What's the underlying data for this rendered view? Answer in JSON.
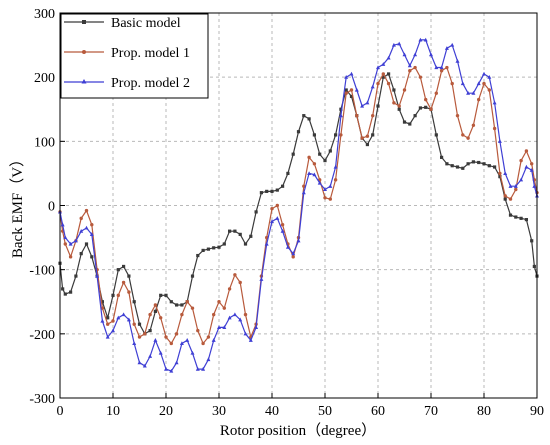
{
  "chart_data": {
    "type": "line",
    "title": "",
    "xlabel": "Rotor position（degree）",
    "ylabel": "Back EMF（V）",
    "xlim": [
      0,
      90
    ],
    "ylim": [
      -300,
      300
    ],
    "xticks": [
      0,
      10,
      20,
      30,
      40,
      50,
      60,
      70,
      80,
      90
    ],
    "yticks": [
      -300,
      -200,
      -100,
      0,
      100,
      200,
      300
    ],
    "grid": true,
    "legend_position": "top-left",
    "colors": {
      "basic": "#3a3a3a",
      "prop1": "#b85a3c",
      "prop2": "#3f3fd4"
    },
    "series": [
      {
        "name": "Basic model",
        "color": "#3a3a3a",
        "points": [
          [
            0,
            -90
          ],
          [
            0.5,
            -130
          ],
          [
            1,
            -138
          ],
          [
            2,
            -135
          ],
          [
            3,
            -110
          ],
          [
            4,
            -75
          ],
          [
            5,
            -60
          ],
          [
            6,
            -80
          ],
          [
            7,
            -110
          ],
          [
            8,
            -150
          ],
          [
            9,
            -175
          ],
          [
            10,
            -140
          ],
          [
            11,
            -100
          ],
          [
            12,
            -95
          ],
          [
            13,
            -110
          ],
          [
            14,
            -150
          ],
          [
            15,
            -185
          ],
          [
            16,
            -200
          ],
          [
            17,
            -195
          ],
          [
            18,
            -165
          ],
          [
            19,
            -140
          ],
          [
            20,
            -140
          ],
          [
            21,
            -150
          ],
          [
            22,
            -155
          ],
          [
            23,
            -155
          ],
          [
            24,
            -150
          ],
          [
            25,
            -110
          ],
          [
            26,
            -78
          ],
          [
            27,
            -70
          ],
          [
            28,
            -68
          ],
          [
            29,
            -66
          ],
          [
            30,
            -65
          ],
          [
            31,
            -60
          ],
          [
            32,
            -40
          ],
          [
            33,
            -40
          ],
          [
            34,
            -45
          ],
          [
            35,
            -60
          ],
          [
            36,
            -48
          ],
          [
            37,
            -10
          ],
          [
            38,
            20
          ],
          [
            39,
            22
          ],
          [
            40,
            22
          ],
          [
            41,
            24
          ],
          [
            42,
            30
          ],
          [
            43,
            50
          ],
          [
            44,
            80
          ],
          [
            45,
            115
          ],
          [
            46,
            140
          ],
          [
            47,
            135
          ],
          [
            48,
            110
          ],
          [
            49,
            80
          ],
          [
            50,
            70
          ],
          [
            51,
            85
          ],
          [
            52,
            110
          ],
          [
            53,
            150
          ],
          [
            54,
            180
          ],
          [
            55,
            170
          ],
          [
            56,
            140
          ],
          [
            57,
            105
          ],
          [
            58,
            95
          ],
          [
            59,
            110
          ],
          [
            60,
            155
          ],
          [
            61,
            200
          ],
          [
            62,
            205
          ],
          [
            63,
            180
          ],
          [
            64,
            150
          ],
          [
            65,
            130
          ],
          [
            66,
            127
          ],
          [
            67,
            140
          ],
          [
            68,
            152
          ],
          [
            69,
            153
          ],
          [
            70,
            150
          ],
          [
            71,
            110
          ],
          [
            72,
            75
          ],
          [
            73,
            65
          ],
          [
            74,
            62
          ],
          [
            75,
            60
          ],
          [
            76,
            58
          ],
          [
            77,
            65
          ],
          [
            78,
            68
          ],
          [
            79,
            67
          ],
          [
            80,
            65
          ],
          [
            81,
            62
          ],
          [
            82,
            60
          ],
          [
            83,
            45
          ],
          [
            84,
            10
          ],
          [
            85,
            -15
          ],
          [
            86,
            -18
          ],
          [
            87,
            -20
          ],
          [
            88,
            -22
          ],
          [
            89,
            -55
          ],
          [
            89.5,
            -95
          ],
          [
            90,
            -110
          ]
        ]
      },
      {
        "name": "Prop. model 1",
        "color": "#b85a3c",
        "points": [
          [
            0,
            -10
          ],
          [
            0.5,
            -40
          ],
          [
            1,
            -60
          ],
          [
            2,
            -80
          ],
          [
            3,
            -55
          ],
          [
            4,
            -20
          ],
          [
            5,
            -8
          ],
          [
            6,
            -30
          ],
          [
            7,
            -100
          ],
          [
            8,
            -160
          ],
          [
            9,
            -185
          ],
          [
            10,
            -180
          ],
          [
            11,
            -140
          ],
          [
            12,
            -120
          ],
          [
            13,
            -135
          ],
          [
            14,
            -185
          ],
          [
            15,
            -205
          ],
          [
            16,
            -200
          ],
          [
            17,
            -170
          ],
          [
            18,
            -155
          ],
          [
            19,
            -175
          ],
          [
            20,
            -205
          ],
          [
            21,
            -215
          ],
          [
            22,
            -200
          ],
          [
            23,
            -170
          ],
          [
            24,
            -150
          ],
          [
            25,
            -160
          ],
          [
            26,
            -195
          ],
          [
            27,
            -215
          ],
          [
            28,
            -205
          ],
          [
            29,
            -170
          ],
          [
            30,
            -150
          ],
          [
            31,
            -160
          ],
          [
            32,
            -130
          ],
          [
            33,
            -108
          ],
          [
            34,
            -120
          ],
          [
            35,
            -170
          ],
          [
            36,
            -205
          ],
          [
            37,
            -185
          ],
          [
            38,
            -110
          ],
          [
            39,
            -50
          ],
          [
            40,
            -5
          ],
          [
            41,
            0
          ],
          [
            42,
            -30
          ],
          [
            43,
            -60
          ],
          [
            44,
            -80
          ],
          [
            45,
            -50
          ],
          [
            46,
            30
          ],
          [
            47,
            75
          ],
          [
            48,
            65
          ],
          [
            49,
            40
          ],
          [
            50,
            12
          ],
          [
            51,
            10
          ],
          [
            52,
            40
          ],
          [
            53,
            110
          ],
          [
            54,
            175
          ],
          [
            55,
            180
          ],
          [
            56,
            140
          ],
          [
            57,
            105
          ],
          [
            58,
            108
          ],
          [
            59,
            140
          ],
          [
            60,
            190
          ],
          [
            61,
            205
          ],
          [
            62,
            190
          ],
          [
            63,
            160
          ],
          [
            64,
            155
          ],
          [
            65,
            180
          ],
          [
            66,
            210
          ],
          [
            67,
            215
          ],
          [
            68,
            200
          ],
          [
            69,
            165
          ],
          [
            70,
            150
          ],
          [
            71,
            175
          ],
          [
            72,
            210
          ],
          [
            73,
            215
          ],
          [
            74,
            190
          ],
          [
            75,
            140
          ],
          [
            76,
            110
          ],
          [
            77,
            105
          ],
          [
            78,
            125
          ],
          [
            79,
            165
          ],
          [
            80,
            190
          ],
          [
            81,
            180
          ],
          [
            82,
            120
          ],
          [
            83,
            50
          ],
          [
            84,
            15
          ],
          [
            85,
            10
          ],
          [
            86,
            25
          ],
          [
            87,
            70
          ],
          [
            88,
            85
          ],
          [
            89,
            65
          ],
          [
            89.5,
            40
          ],
          [
            90,
            20
          ]
        ]
      },
      {
        "name": "Prop. model 2",
        "color": "#3f3fd4",
        "points": [
          [
            0,
            -10
          ],
          [
            0.5,
            -30
          ],
          [
            1,
            -50
          ],
          [
            2,
            -60
          ],
          [
            3,
            -55
          ],
          [
            4,
            -40
          ],
          [
            5,
            -35
          ],
          [
            6,
            -45
          ],
          [
            7,
            -110
          ],
          [
            8,
            -180
          ],
          [
            9,
            -205
          ],
          [
            10,
            -195
          ],
          [
            11,
            -175
          ],
          [
            12,
            -170
          ],
          [
            13,
            -178
          ],
          [
            14,
            -215
          ],
          [
            15,
            -245
          ],
          [
            16,
            -250
          ],
          [
            17,
            -235
          ],
          [
            18,
            -210
          ],
          [
            19,
            -230
          ],
          [
            20,
            -255
          ],
          [
            21,
            -258
          ],
          [
            22,
            -245
          ],
          [
            23,
            -215
          ],
          [
            24,
            -210
          ],
          [
            25,
            -230
          ],
          [
            26,
            -255
          ],
          [
            27,
            -255
          ],
          [
            28,
            -240
          ],
          [
            29,
            -210
          ],
          [
            30,
            -190
          ],
          [
            31,
            -190
          ],
          [
            32,
            -175
          ],
          [
            33,
            -170
          ],
          [
            34,
            -178
          ],
          [
            35,
            -200
          ],
          [
            36,
            -210
          ],
          [
            37,
            -190
          ],
          [
            38,
            -115
          ],
          [
            39,
            -60
          ],
          [
            40,
            -25
          ],
          [
            41,
            -20
          ],
          [
            42,
            -40
          ],
          [
            43,
            -65
          ],
          [
            44,
            -75
          ],
          [
            45,
            -55
          ],
          [
            46,
            20
          ],
          [
            47,
            50
          ],
          [
            48,
            48
          ],
          [
            49,
            35
          ],
          [
            50,
            25
          ],
          [
            51,
            30
          ],
          [
            52,
            60
          ],
          [
            53,
            140
          ],
          [
            54,
            200
          ],
          [
            55,
            205
          ],
          [
            56,
            180
          ],
          [
            57,
            155
          ],
          [
            58,
            160
          ],
          [
            59,
            185
          ],
          [
            60,
            215
          ],
          [
            61,
            220
          ],
          [
            62,
            230
          ],
          [
            63,
            250
          ],
          [
            64,
            252
          ],
          [
            65,
            235
          ],
          [
            66,
            218
          ],
          [
            67,
            235
          ],
          [
            68,
            258
          ],
          [
            69,
            258
          ],
          [
            70,
            235
          ],
          [
            71,
            215
          ],
          [
            72,
            215
          ],
          [
            73,
            245
          ],
          [
            74,
            250
          ],
          [
            75,
            225
          ],
          [
            76,
            190
          ],
          [
            77,
            175
          ],
          [
            78,
            175
          ],
          [
            79,
            190
          ],
          [
            80,
            205
          ],
          [
            81,
            200
          ],
          [
            82,
            160
          ],
          [
            83,
            100
          ],
          [
            84,
            50
          ],
          [
            85,
            30
          ],
          [
            86,
            30
          ],
          [
            87,
            40
          ],
          [
            88,
            60
          ],
          [
            89,
            55
          ],
          [
            89.5,
            30
          ],
          [
            90,
            15
          ]
        ]
      }
    ]
  }
}
